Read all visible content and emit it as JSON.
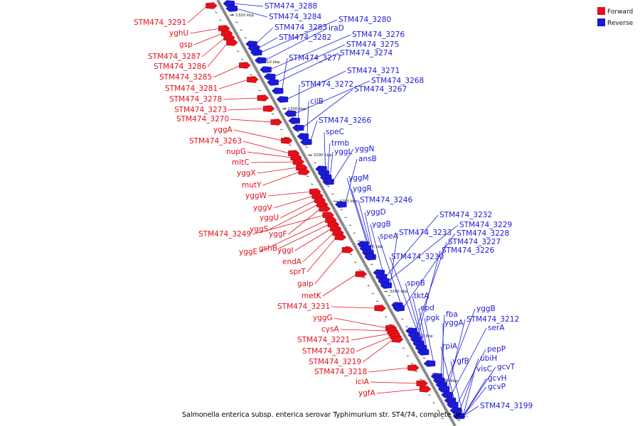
{
  "caption": "Salmonella enterica subsp. enterica serovar Typhimurium str. ST4/74, complete ge...",
  "legend": [
    {
      "label": "Forward",
      "color": "#e4101a"
    },
    {
      "label": "Reverse",
      "color": "#1a1ad6"
    }
  ],
  "colors": {
    "forward": "#e4101a",
    "reverse": "#1a1ad6",
    "backbone": "#8c8c8c"
  },
  "ticks": [
    "1320 kbp",
    "1310 kbp",
    "1300 kbp",
    "3290 kbp",
    "3280 kbp",
    "3270 kbp",
    "3260 kbp",
    "3250 kbp",
    "3240 kbp"
  ],
  "forward_genes": [
    "STM474_3291",
    "yghU",
    "gsp",
    "STM474_3287",
    "STM474_3286",
    "STM474_3285",
    "STM474_3281",
    "STM474_3278",
    "STM474_3273",
    "STM474_3270",
    "yggA",
    "STM474_3263",
    "nupG",
    "mltC",
    "yggX",
    "mutY",
    "yggW",
    "yggV",
    "yggU",
    "yggS",
    "yggF",
    "STM474_3249",
    "yggE",
    "gshB",
    "yggI",
    "endA",
    "sprT",
    "galp",
    "metK",
    "STM474_3231",
    "yggG",
    "cysA",
    "STM474_3221",
    "STM474_3220",
    "STM474_3219",
    "STM474_3218",
    "iciA",
    "ygfA"
  ],
  "reverse_genes": [
    "STM474_3288",
    "STM474_3284",
    "STM474_3283",
    "STM474_3282",
    "STM474_3280",
    "iraD",
    "STM474_3276",
    "STM474_3275",
    "STM474_3274",
    "STM474_3277",
    "STM474_3271",
    "STM474_3268",
    "STM474_3272",
    "STM474_3267",
    "cilB",
    "STM474_3266",
    "speC",
    "trmb",
    "yggL",
    "yggN",
    "ansB",
    "yggM",
    "yggR",
    "STM474_3246",
    "yggD",
    "yggB",
    "STM474_3232",
    "STM474_3229",
    "STM474_3233",
    "speA",
    "STM474_3228",
    "STM474_3227",
    "STM474_3226",
    "STM474_3230",
    "speB",
    "tktA",
    "epd",
    "pgk",
    "fba",
    "yggA",
    "yggB",
    "STM474_3212",
    "serA",
    "rpiA",
    "pepP",
    "ubiH",
    "ygfB",
    "visC",
    "gcvT",
    "gcvH",
    "gcvP",
    "STM474_3199"
  ]
}
